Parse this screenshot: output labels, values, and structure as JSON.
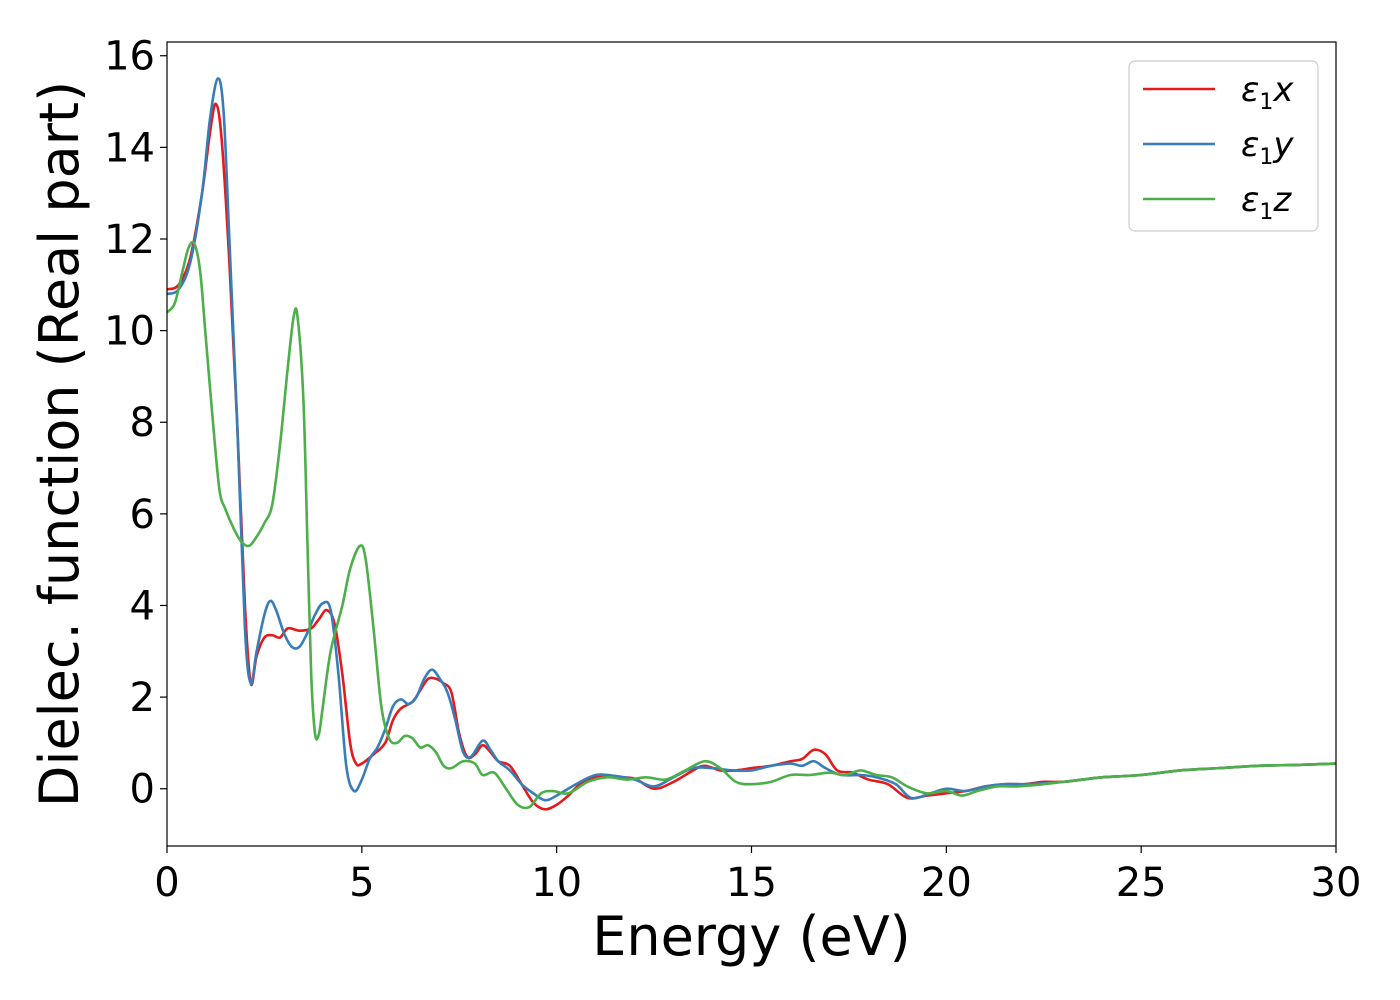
{
  "chart_data": {
    "type": "line",
    "xlabel": "Energy (eV)",
    "ylabel": "Dielec. function (Real part)",
    "xlim": [
      0,
      30
    ],
    "ylim": [
      -1.25,
      16.3
    ],
    "xticks": [
      0,
      5,
      10,
      15,
      20,
      25,
      30
    ],
    "yticks": [
      0,
      2,
      4,
      6,
      8,
      10,
      12,
      14,
      16
    ],
    "grid": false,
    "legend_position": "top-right",
    "series": [
      {
        "name": "ε1x",
        "legend_base": "ε",
        "legend_sub": "1",
        "legend_tail": "x",
        "color": "#e41a1c",
        "points": [
          [
            0,
            10.9
          ],
          [
            0.3,
            11.0
          ],
          [
            0.6,
            11.6
          ],
          [
            0.9,
            13.0
          ],
          [
            1.1,
            14.3
          ],
          [
            1.25,
            14.95
          ],
          [
            1.4,
            14.2
          ],
          [
            1.6,
            11.5
          ],
          [
            1.8,
            8.0
          ],
          [
            2.0,
            4.0
          ],
          [
            2.15,
            2.3
          ],
          [
            2.3,
            2.9
          ],
          [
            2.5,
            3.3
          ],
          [
            2.7,
            3.35
          ],
          [
            2.9,
            3.3
          ],
          [
            3.1,
            3.5
          ],
          [
            3.4,
            3.45
          ],
          [
            3.7,
            3.5
          ],
          [
            3.9,
            3.7
          ],
          [
            4.1,
            3.9
          ],
          [
            4.3,
            3.6
          ],
          [
            4.5,
            2.5
          ],
          [
            4.7,
            1.0
          ],
          [
            4.85,
            0.55
          ],
          [
            5.0,
            0.55
          ],
          [
            5.3,
            0.75
          ],
          [
            5.6,
            1.0
          ],
          [
            5.8,
            1.5
          ],
          [
            6.0,
            1.75
          ],
          [
            6.3,
            1.9
          ],
          [
            6.5,
            2.15
          ],
          [
            6.7,
            2.4
          ],
          [
            6.9,
            2.4
          ],
          [
            7.1,
            2.3
          ],
          [
            7.3,
            2.1
          ],
          [
            7.5,
            1.2
          ],
          [
            7.7,
            0.7
          ],
          [
            7.9,
            0.75
          ],
          [
            8.1,
            0.95
          ],
          [
            8.3,
            0.8
          ],
          [
            8.5,
            0.6
          ],
          [
            8.8,
            0.5
          ],
          [
            9.1,
            0.1
          ],
          [
            9.4,
            -0.3
          ],
          [
            9.7,
            -0.45
          ],
          [
            10.0,
            -0.35
          ],
          [
            10.3,
            -0.15
          ],
          [
            10.6,
            0.1
          ],
          [
            11.0,
            0.25
          ],
          [
            11.5,
            0.25
          ],
          [
            12.0,
            0.22
          ],
          [
            12.5,
            0.0
          ],
          [
            13.0,
            0.15
          ],
          [
            13.5,
            0.4
          ],
          [
            13.8,
            0.5
          ],
          [
            14.2,
            0.4
          ],
          [
            14.6,
            0.4
          ],
          [
            15.0,
            0.45
          ],
          [
            15.5,
            0.5
          ],
          [
            16.0,
            0.6
          ],
          [
            16.3,
            0.65
          ],
          [
            16.6,
            0.85
          ],
          [
            16.9,
            0.75
          ],
          [
            17.2,
            0.4
          ],
          [
            17.6,
            0.35
          ],
          [
            18.0,
            0.2
          ],
          [
            18.5,
            0.1
          ],
          [
            19.0,
            -0.2
          ],
          [
            19.5,
            -0.15
          ],
          [
            20.0,
            -0.1
          ],
          [
            20.5,
            -0.05
          ],
          [
            21.0,
            0.05
          ],
          [
            21.5,
            0.1
          ],
          [
            22.0,
            0.1
          ],
          [
            22.5,
            0.15
          ],
          [
            23.0,
            0.15
          ],
          [
            23.5,
            0.2
          ],
          [
            24.0,
            0.25
          ],
          [
            25.0,
            0.3
          ],
          [
            26.0,
            0.4
          ],
          [
            27.0,
            0.45
          ],
          [
            28.0,
            0.5
          ],
          [
            29.0,
            0.52
          ],
          [
            30.0,
            0.55
          ]
        ]
      },
      {
        "name": "ε1y",
        "legend_base": "ε",
        "legend_sub": "1",
        "legend_tail": "y",
        "color": "#377eb8",
        "points": [
          [
            0,
            10.8
          ],
          [
            0.3,
            10.9
          ],
          [
            0.6,
            11.5
          ],
          [
            0.9,
            13.0
          ],
          [
            1.1,
            14.6
          ],
          [
            1.3,
            15.5
          ],
          [
            1.45,
            14.8
          ],
          [
            1.6,
            12.0
          ],
          [
            1.8,
            8.0
          ],
          [
            2.0,
            3.5
          ],
          [
            2.15,
            2.3
          ],
          [
            2.3,
            3.0
          ],
          [
            2.5,
            3.8
          ],
          [
            2.65,
            4.1
          ],
          [
            2.8,
            3.9
          ],
          [
            3.0,
            3.4
          ],
          [
            3.2,
            3.1
          ],
          [
            3.4,
            3.1
          ],
          [
            3.6,
            3.4
          ],
          [
            3.8,
            3.8
          ],
          [
            4.0,
            4.05
          ],
          [
            4.2,
            3.9
          ],
          [
            4.4,
            2.5
          ],
          [
            4.6,
            0.5
          ],
          [
            4.8,
            -0.05
          ],
          [
            5.0,
            0.2
          ],
          [
            5.2,
            0.65
          ],
          [
            5.4,
            0.9
          ],
          [
            5.6,
            1.3
          ],
          [
            5.8,
            1.8
          ],
          [
            6.0,
            1.95
          ],
          [
            6.2,
            1.85
          ],
          [
            6.4,
            2.0
          ],
          [
            6.6,
            2.4
          ],
          [
            6.8,
            2.6
          ],
          [
            7.0,
            2.4
          ],
          [
            7.2,
            2.1
          ],
          [
            7.4,
            1.5
          ],
          [
            7.6,
            0.8
          ],
          [
            7.8,
            0.7
          ],
          [
            8.1,
            1.05
          ],
          [
            8.3,
            0.85
          ],
          [
            8.5,
            0.6
          ],
          [
            8.8,
            0.4
          ],
          [
            9.1,
            0.1
          ],
          [
            9.4,
            -0.1
          ],
          [
            9.7,
            -0.25
          ],
          [
            10.0,
            -0.15
          ],
          [
            10.5,
            0.1
          ],
          [
            11.0,
            0.3
          ],
          [
            11.5,
            0.28
          ],
          [
            12.0,
            0.2
          ],
          [
            12.5,
            0.05
          ],
          [
            13.0,
            0.25
          ],
          [
            13.5,
            0.45
          ],
          [
            14.0,
            0.45
          ],
          [
            14.5,
            0.4
          ],
          [
            15.0,
            0.4
          ],
          [
            15.5,
            0.5
          ],
          [
            16.0,
            0.55
          ],
          [
            16.3,
            0.5
          ],
          [
            16.6,
            0.6
          ],
          [
            16.9,
            0.45
          ],
          [
            17.3,
            0.3
          ],
          [
            17.8,
            0.3
          ],
          [
            18.2,
            0.25
          ],
          [
            18.7,
            0.1
          ],
          [
            19.1,
            -0.2
          ],
          [
            19.6,
            -0.1
          ],
          [
            20.0,
            0.0
          ],
          [
            20.5,
            -0.05
          ],
          [
            21.0,
            0.05
          ],
          [
            21.5,
            0.1
          ],
          [
            22.0,
            0.1
          ],
          [
            22.5,
            0.12
          ],
          [
            23.0,
            0.15
          ],
          [
            23.5,
            0.2
          ],
          [
            24.0,
            0.25
          ],
          [
            25.0,
            0.3
          ],
          [
            26.0,
            0.4
          ],
          [
            27.0,
            0.45
          ],
          [
            28.0,
            0.5
          ],
          [
            29.0,
            0.52
          ],
          [
            30.0,
            0.55
          ]
        ]
      },
      {
        "name": "ε1z",
        "legend_base": "ε",
        "legend_sub": "1",
        "legend_tail": "z",
        "color": "#4daf4a",
        "points": [
          [
            0,
            10.4
          ],
          [
            0.2,
            10.6
          ],
          [
            0.4,
            11.3
          ],
          [
            0.55,
            11.8
          ],
          [
            0.7,
            11.9
          ],
          [
            0.85,
            11.3
          ],
          [
            1.0,
            9.8
          ],
          [
            1.2,
            7.8
          ],
          [
            1.35,
            6.5
          ],
          [
            1.5,
            6.1
          ],
          [
            1.7,
            5.7
          ],
          [
            1.9,
            5.4
          ],
          [
            2.1,
            5.3
          ],
          [
            2.3,
            5.5
          ],
          [
            2.5,
            5.8
          ],
          [
            2.7,
            6.2
          ],
          [
            2.9,
            7.5
          ],
          [
            3.1,
            9.2
          ],
          [
            3.25,
            10.3
          ],
          [
            3.35,
            10.3
          ],
          [
            3.5,
            8.5
          ],
          [
            3.6,
            5.5
          ],
          [
            3.7,
            2.5
          ],
          [
            3.8,
            1.2
          ],
          [
            3.9,
            1.2
          ],
          [
            4.0,
            1.8
          ],
          [
            4.2,
            3.0
          ],
          [
            4.5,
            4.0
          ],
          [
            4.7,
            4.8
          ],
          [
            4.95,
            5.3
          ],
          [
            5.1,
            5.0
          ],
          [
            5.3,
            3.5
          ],
          [
            5.5,
            1.8
          ],
          [
            5.7,
            1.1
          ],
          [
            5.9,
            1.0
          ],
          [
            6.1,
            1.15
          ],
          [
            6.3,
            1.1
          ],
          [
            6.5,
            0.9
          ],
          [
            6.7,
            0.95
          ],
          [
            6.9,
            0.8
          ],
          [
            7.1,
            0.5
          ],
          [
            7.3,
            0.45
          ],
          [
            7.6,
            0.6
          ],
          [
            7.9,
            0.55
          ],
          [
            8.1,
            0.3
          ],
          [
            8.4,
            0.35
          ],
          [
            8.7,
            0.0
          ],
          [
            9.0,
            -0.35
          ],
          [
            9.3,
            -0.4
          ],
          [
            9.6,
            -0.1
          ],
          [
            9.9,
            -0.05
          ],
          [
            10.3,
            -0.1
          ],
          [
            10.8,
            0.15
          ],
          [
            11.3,
            0.25
          ],
          [
            11.8,
            0.2
          ],
          [
            12.3,
            0.25
          ],
          [
            12.8,
            0.2
          ],
          [
            13.3,
            0.4
          ],
          [
            13.8,
            0.6
          ],
          [
            14.2,
            0.45
          ],
          [
            14.6,
            0.15
          ],
          [
            15.0,
            0.1
          ],
          [
            15.5,
            0.15
          ],
          [
            16.0,
            0.3
          ],
          [
            16.5,
            0.3
          ],
          [
            17.0,
            0.35
          ],
          [
            17.4,
            0.3
          ],
          [
            17.8,
            0.4
          ],
          [
            18.2,
            0.3
          ],
          [
            18.6,
            0.25
          ],
          [
            19.0,
            0.05
          ],
          [
            19.5,
            -0.1
          ],
          [
            20.0,
            -0.05
          ],
          [
            20.4,
            -0.15
          ],
          [
            20.8,
            -0.05
          ],
          [
            21.3,
            0.05
          ],
          [
            21.8,
            0.05
          ],
          [
            22.5,
            0.1
          ],
          [
            23.0,
            0.15
          ],
          [
            23.5,
            0.2
          ],
          [
            24.0,
            0.25
          ],
          [
            25.0,
            0.3
          ],
          [
            26.0,
            0.4
          ],
          [
            27.0,
            0.45
          ],
          [
            28.0,
            0.5
          ],
          [
            29.0,
            0.52
          ],
          [
            30.0,
            0.55
          ]
        ]
      }
    ]
  }
}
